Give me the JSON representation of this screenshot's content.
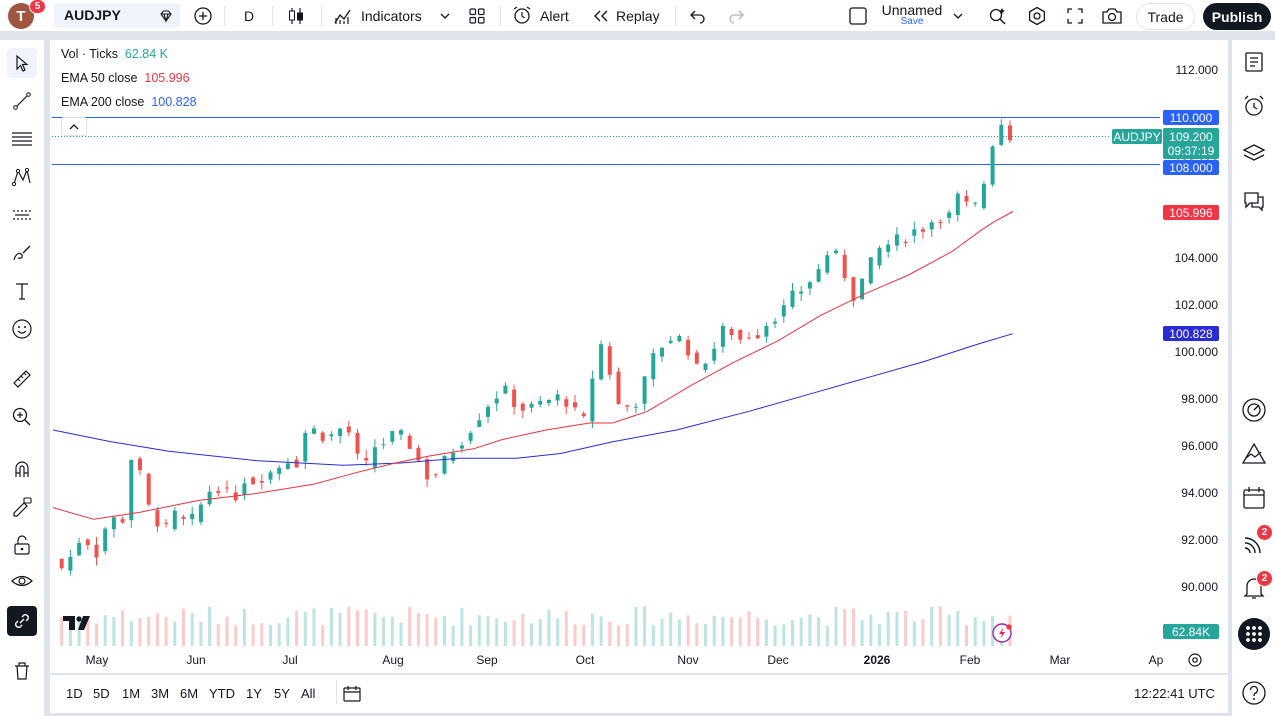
{
  "toolbar": {
    "symbol": "AUDJPY",
    "interval": "D",
    "indicators_label": "Indicators",
    "alert_label": "Alert",
    "replay_label": "Replay",
    "layout_name": "Unnamed",
    "layout_save": "Save",
    "trade_label": "Trade",
    "publish_label": "Publish",
    "avatar_letter": "T",
    "notification_count": "5"
  },
  "legend": {
    "vol_label": "Vol · Ticks",
    "vol_value": "62.84 K",
    "ema50_label": "EMA 50 close",
    "ema50_value": "105.996",
    "ema200_label": "EMA 200 close",
    "ema200_value": "100.828"
  },
  "price_labels": {
    "line_upper": "110.000",
    "symbol_tag": "AUDJPY",
    "last_price": "109.200",
    "countdown": "09:37:19",
    "line_lower": "108.000",
    "ema50": "105.996",
    "ema200": "100.828",
    "volume": "62.84K"
  },
  "right_sidebar": {
    "feed_badge": "2",
    "alerts_badge": "2"
  },
  "periods": [
    "1D",
    "5D",
    "1M",
    "3M",
    "6M",
    "YTD",
    "1Y",
    "5Y",
    "All"
  ],
  "clock": "12:22:41 UTC",
  "colors": {
    "up": "#26a69a",
    "down": "#ef5350",
    "ema50": "#f23645",
    "ema200": "#2962ff",
    "hline": "#2962ff",
    "accent": "#2962ff"
  },
  "chart_data": {
    "type": "candlestick",
    "y_ticks": [
      "112.000",
      "110.000",
      "108.000",
      "106.000",
      "104.000",
      "102.000",
      "100.000",
      "98.000",
      "96.000",
      "94.000",
      "92.000",
      "90.000"
    ],
    "ylim": [
      88.9,
      112.7
    ],
    "x_ticks": [
      "May",
      "Jun",
      "Jul",
      "Aug",
      "Sep",
      "Oct",
      "Nov",
      "Dec",
      "2026",
      "Feb",
      "Mar",
      "Ap"
    ],
    "horizontal_lines": [
      110.0,
      108.0
    ],
    "last_price": 109.2,
    "series": [
      {
        "name": "EMA 50 close",
        "points": [
          [
            0,
            93.4
          ],
          [
            14,
            92.9
          ],
          [
            30,
            93.2
          ],
          [
            50,
            93.7
          ],
          [
            70,
            94.0
          ],
          [
            90,
            94.4
          ],
          [
            105,
            94.9
          ],
          [
            118,
            95.3
          ],
          [
            130,
            95.6
          ],
          [
            145,
            95.9
          ],
          [
            155,
            96.3
          ],
          [
            170,
            96.7
          ],
          [
            185,
            97.0
          ],
          [
            193,
            97.0
          ],
          [
            205,
            97.5
          ],
          [
            220,
            98.6
          ],
          [
            235,
            99.6
          ],
          [
            250,
            100.5
          ],
          [
            265,
            101.6
          ],
          [
            280,
            102.5
          ],
          [
            295,
            103.3
          ],
          [
            310,
            104.3
          ],
          [
            320,
            105.2
          ],
          [
            325,
            105.6
          ],
          [
            331,
            106.0
          ]
        ]
      },
      {
        "name": "EMA 200 close",
        "points": [
          [
            0,
            96.7
          ],
          [
            20,
            96.2
          ],
          [
            40,
            95.8
          ],
          [
            70,
            95.4
          ],
          [
            100,
            95.2
          ],
          [
            120,
            95.3
          ],
          [
            140,
            95.5
          ],
          [
            160,
            95.5
          ],
          [
            175,
            95.7
          ],
          [
            193,
            96.2
          ],
          [
            215,
            96.7
          ],
          [
            240,
            97.5
          ],
          [
            260,
            98.2
          ],
          [
            280,
            98.9
          ],
          [
            300,
            99.6
          ],
          [
            320,
            100.4
          ],
          [
            331,
            100.8
          ]
        ]
      }
    ],
    "closes": [
      [
        0,
        91.2
      ],
      [
        4,
        90.7
      ],
      [
        7,
        91.6
      ],
      [
        11,
        92.4
      ],
      [
        14,
        91.0
      ],
      [
        17,
        92.3
      ],
      [
        20,
        93.0
      ],
      [
        23,
        92.7
      ],
      [
        26,
        93.3
      ],
      [
        27,
        95.5
      ],
      [
        30,
        94.8
      ],
      [
        33,
        93.4
      ],
      [
        36,
        92.8
      ],
      [
        39,
        92.5
      ],
      [
        42,
        93.1
      ],
      [
        46,
        92.7
      ],
      [
        49,
        93.0
      ],
      [
        53,
        94.0
      ],
      [
        56,
        94.4
      ],
      [
        59,
        94.0
      ],
      [
        63,
        93.9
      ],
      [
        66,
        94.6
      ],
      [
        70,
        94.5
      ],
      [
        73,
        94.8
      ],
      [
        77,
        95.0
      ],
      [
        80,
        95.5
      ],
      [
        84,
        95.3
      ],
      [
        85,
        96.0
      ],
      [
        88,
        96.9
      ],
      [
        91,
        96.6
      ],
      [
        95,
        96.3
      ],
      [
        98,
        96.8
      ],
      [
        102,
        96.6
      ],
      [
        105,
        95.5
      ],
      [
        108,
        95.2
      ],
      [
        111,
        96.0
      ],
      [
        115,
        96.2
      ],
      [
        118,
        96.6
      ],
      [
        122,
        96.3
      ],
      [
        124,
        95.8
      ],
      [
        127,
        95.2
      ],
      [
        130,
        94.5
      ],
      [
        133,
        95.0
      ],
      [
        136,
        95.6
      ],
      [
        140,
        96.1
      ],
      [
        143,
        96.6
      ],
      [
        147,
        97.3
      ],
      [
        150,
        97.8
      ],
      [
        154,
        98.3
      ],
      [
        157,
        98.4
      ],
      [
        160,
        97.6
      ],
      [
        164,
        97.6
      ],
      [
        167,
        97.8
      ],
      [
        170,
        97.9
      ],
      [
        174,
        98.1
      ],
      [
        177,
        97.9
      ],
      [
        181,
        97.3
      ],
      [
        183,
        97.1
      ],
      [
        185,
        98.2
      ],
      [
        188,
        100.5
      ],
      [
        191,
        100.0
      ],
      [
        193,
        98.3
      ],
      [
        196,
        97.5
      ],
      [
        198,
        97.7
      ],
      [
        201,
        97.9
      ],
      [
        204,
        98.8
      ],
      [
        206,
        99.6
      ],
      [
        209,
        100.2
      ],
      [
        213,
        100.6
      ],
      [
        216,
        100.6
      ],
      [
        219,
        100.1
      ],
      [
        221,
        99.6
      ],
      [
        223,
        99.0
      ],
      [
        225,
        99.7
      ],
      [
        228,
        100.2
      ],
      [
        230,
        100.9
      ],
      [
        233,
        101.0
      ],
      [
        236,
        100.6
      ],
      [
        239,
        100.5
      ],
      [
        241,
        101.0
      ],
      [
        244,
        100.7
      ],
      [
        247,
        101.5
      ],
      [
        251,
        101.6
      ],
      [
        254,
        102.4
      ],
      [
        257,
        102.4
      ],
      [
        259,
        102.9
      ],
      [
        263,
        103.2
      ],
      [
        266,
        104.1
      ],
      [
        268,
        104.3
      ],
      [
        271,
        104.0
      ],
      [
        273,
        103.3
      ],
      [
        276,
        102.4
      ],
      [
        278,
        102.8
      ],
      [
        281,
        103.6
      ],
      [
        284,
        104.2
      ],
      [
        286,
        104.6
      ],
      [
        289,
        104.6
      ],
      [
        292,
        104.9
      ],
      [
        295,
        104.9
      ],
      [
        297,
        105.2
      ],
      [
        300,
        105.3
      ],
      [
        303,
        105.6
      ],
      [
        306,
        105.8
      ],
      [
        308,
        105.3
      ],
      [
        311,
        106.9
      ],
      [
        314,
        106.0
      ],
      [
        316,
        106.5
      ],
      [
        319,
        106.1
      ],
      [
        322,
        107.8
      ],
      [
        325,
        109.5
      ],
      [
        328,
        109.9
      ],
      [
        330,
        109.2
      ],
      [
        331,
        109.2
      ]
    ]
  }
}
